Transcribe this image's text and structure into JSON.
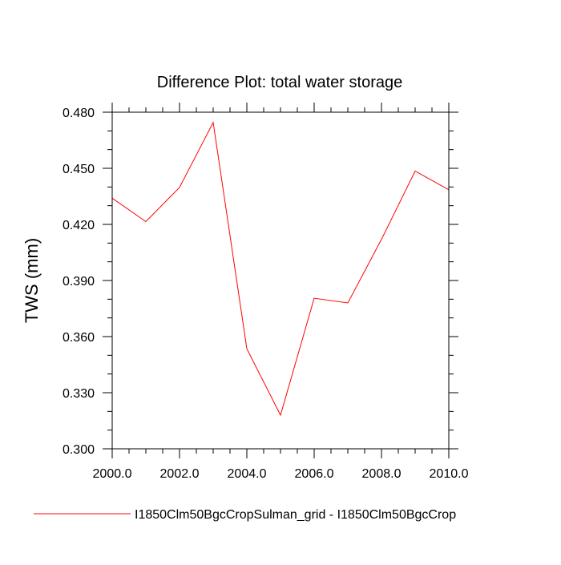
{
  "chart_data": {
    "type": "line",
    "title": "Difference Plot: total water storage",
    "xlabel": "",
    "ylabel": "TWS  (mm)",
    "xlim": [
      2000,
      2010
    ],
    "ylim": [
      0.3,
      0.48
    ],
    "x_ticks": [
      "2000.0",
      "2002.0",
      "2004.0",
      "2006.0",
      "2008.0",
      "2010.0"
    ],
    "y_ticks": [
      "0.300",
      "0.330",
      "0.360",
      "0.390",
      "0.420",
      "0.450",
      "0.480"
    ],
    "grid": false,
    "legend_position": "bottom",
    "series": [
      {
        "name": "I1850Clm50BgcCropSulman_grid - I1850Clm50BgcCrop",
        "color": "#ff0000",
        "x": [
          2000,
          2001,
          2002,
          2003,
          2004,
          2005,
          2006,
          2007,
          2008,
          2009,
          2010
        ],
        "y": [
          0.434,
          0.4215,
          0.4398,
          0.4745,
          0.3535,
          0.318,
          0.3805,
          0.378,
          0.412,
          0.4485,
          0.4385
        ]
      }
    ]
  }
}
